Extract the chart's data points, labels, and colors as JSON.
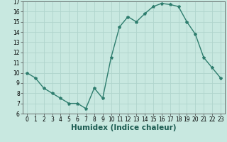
{
  "x": [
    0,
    1,
    2,
    3,
    4,
    5,
    6,
    7,
    8,
    9,
    10,
    11,
    12,
    13,
    14,
    15,
    16,
    17,
    18,
    19,
    20,
    21,
    22,
    23
  ],
  "y": [
    10,
    9.5,
    8.5,
    8,
    7.5,
    7,
    7,
    6.5,
    8.5,
    7.5,
    11.5,
    14.5,
    15.5,
    15,
    15.8,
    16.5,
    16.8,
    16.7,
    16.5,
    15,
    13.8,
    11.5,
    10.5,
    9.5
  ],
  "line_color": "#2e7d6e",
  "marker": "*",
  "marker_size": 3,
  "bg_color": "#c8e8e0",
  "grid_color": "#b0d4cc",
  "xlabel": "Humidex (Indice chaleur)",
  "ylim": [
    6,
    17
  ],
  "xlim": [
    -0.5,
    23.5
  ],
  "yticks": [
    6,
    7,
    8,
    9,
    10,
    11,
    12,
    13,
    14,
    15,
    16,
    17
  ],
  "xticks": [
    0,
    1,
    2,
    3,
    4,
    5,
    6,
    7,
    8,
    9,
    10,
    11,
    12,
    13,
    14,
    15,
    16,
    17,
    18,
    19,
    20,
    21,
    22,
    23
  ],
  "tick_fontsize": 5.5,
  "xlabel_fontsize": 7.5,
  "line_width": 1.0
}
